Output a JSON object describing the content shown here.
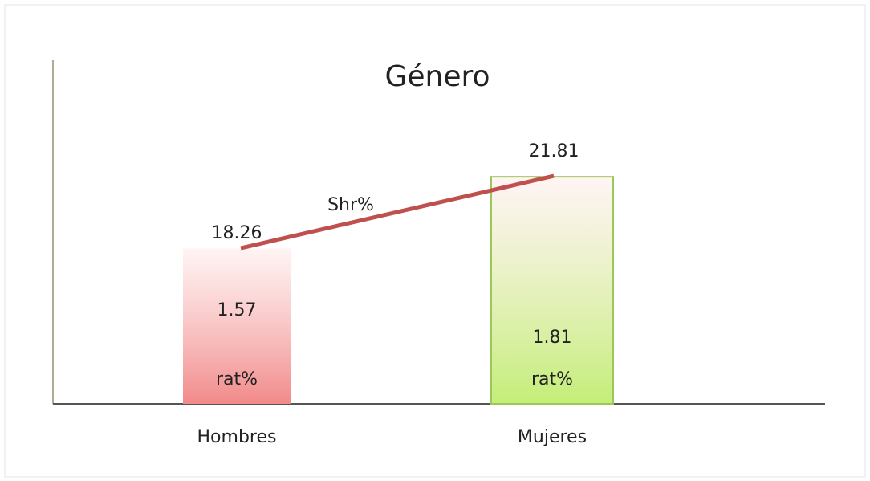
{
  "chart_data": {
    "type": "bar",
    "title": "Género",
    "categories": [
      "Hombres",
      "Mujeres"
    ],
    "series": [
      {
        "name": "rat%",
        "type": "bar",
        "colors": [
          "#f28a8a",
          "#c4ee78"
        ],
        "values": [
          1.57,
          1.81
        ]
      },
      {
        "name": "Shr%",
        "type": "line",
        "axis": "y2",
        "color": "#c0504d",
        "values": [
          18.26,
          21.81
        ]
      }
    ],
    "ylim": [
      1.05,
      2.2
    ],
    "y2lim": [
      10.6,
      27.5
    ]
  }
}
